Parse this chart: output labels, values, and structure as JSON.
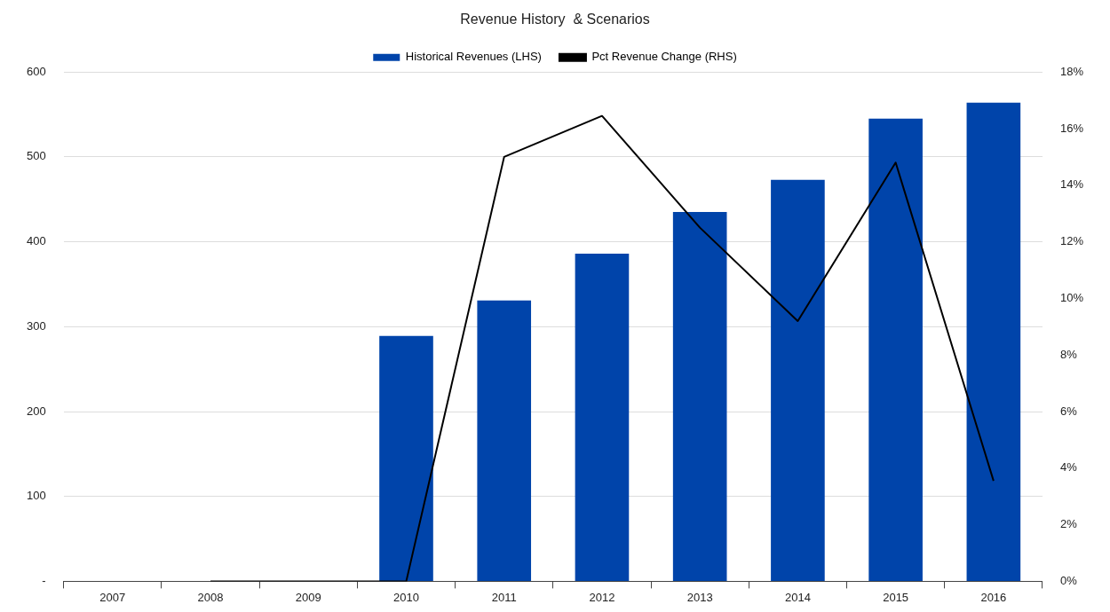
{
  "chart_data": {
    "type": "bar",
    "title": "Revenue History  & Scenarios",
    "categories": [
      "2007",
      "2008",
      "2009",
      "2010",
      "2011",
      "2012",
      "2013",
      "2014",
      "2015",
      "2016"
    ],
    "series": [
      {
        "name": "Historical Revenues (LHS)",
        "color": "#0044aa",
        "values": [
          null,
          null,
          null,
          289,
          331,
          386,
          435,
          473,
          545,
          564
        ]
      },
      {
        "name": "Pct Revenue Change (RHS)",
        "type": "line",
        "axis": "y2",
        "color": "#000000",
        "values": [
          null,
          0,
          0,
          0,
          15.0,
          16.45,
          12.5,
          9.2,
          14.8,
          3.55
        ]
      }
    ],
    "ylim": [
      0,
      600
    ],
    "yticks": [
      {
        "value": 0,
        "label": "-"
      },
      100,
      200,
      300,
      400,
      500,
      600
    ],
    "y2lim": [
      0,
      18
    ],
    "y2ticks": [
      {
        "value": 0,
        "label": "0%"
      },
      {
        "value": 2,
        "label": "2%"
      },
      {
        "value": 4,
        "label": "4%"
      },
      {
        "value": 6,
        "label": "6%"
      },
      {
        "value": 8,
        "label": "8%"
      },
      {
        "value": 10,
        "label": "10%"
      },
      {
        "value": 12,
        "label": "12%"
      },
      {
        "value": 14,
        "label": "14%"
      },
      {
        "value": 16,
        "label": "16%"
      },
      {
        "value": 18,
        "label": "18%"
      }
    ],
    "grid": "y",
    "legend": "top",
    "marker": "none"
  }
}
